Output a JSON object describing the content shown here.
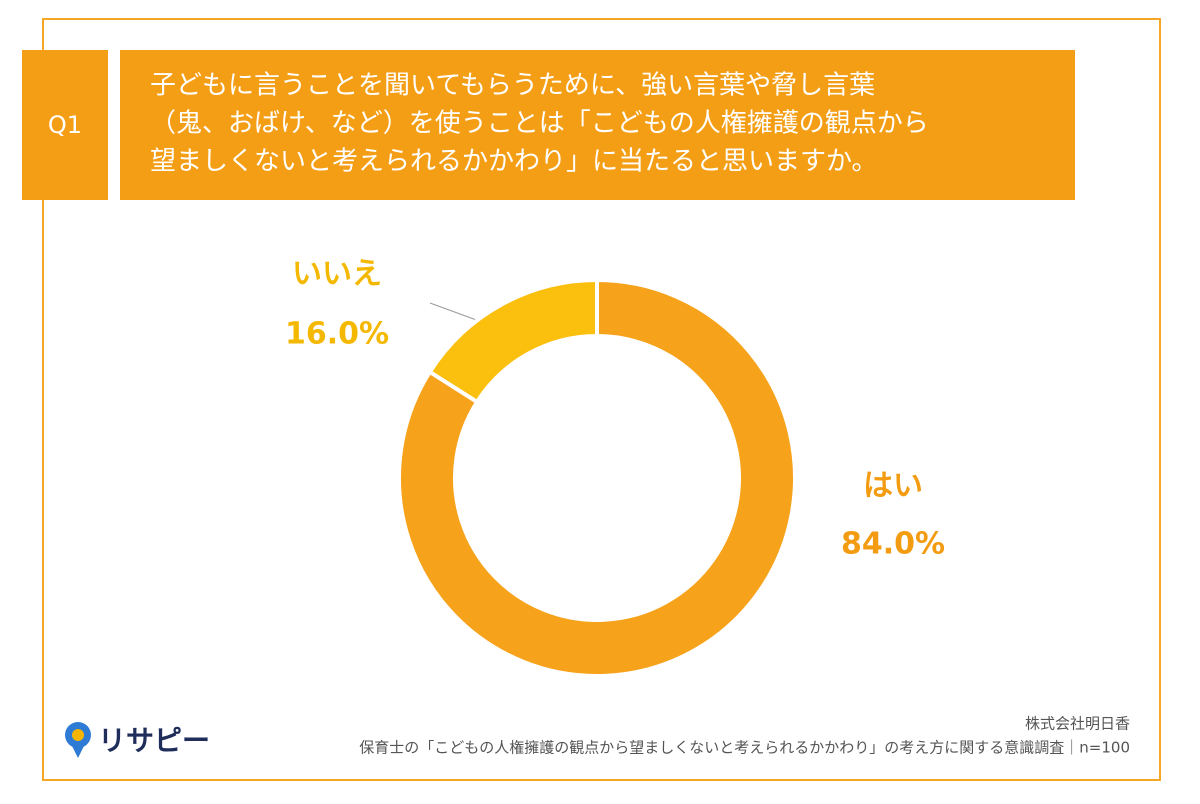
{
  "chart_data": {
    "type": "donut",
    "question_label": "Q1",
    "title_lines": [
      "子どもに言うことを聞いてもらうために、強い言葉や脅し言葉",
      "（鬼、おばけ、など）を使うことは「こどもの人権擁護の観点から",
      "望ましくないと考えられるかかわり」に当たると思いますか。"
    ],
    "categories": [
      "はい",
      "いいえ"
    ],
    "values": [
      84,
      16
    ],
    "value_labels": [
      "84.0%",
      "16.0%"
    ],
    "colors": [
      "#f7a21b",
      "#fbbf0e"
    ]
  },
  "logo": "リサピー",
  "footer": {
    "company": "株式会社明日香",
    "survey": "保育士の「こどもの人権擁護の観点から望ましくないと考えられるかかわり」の考え方に関する意識調査｜n=100"
  }
}
